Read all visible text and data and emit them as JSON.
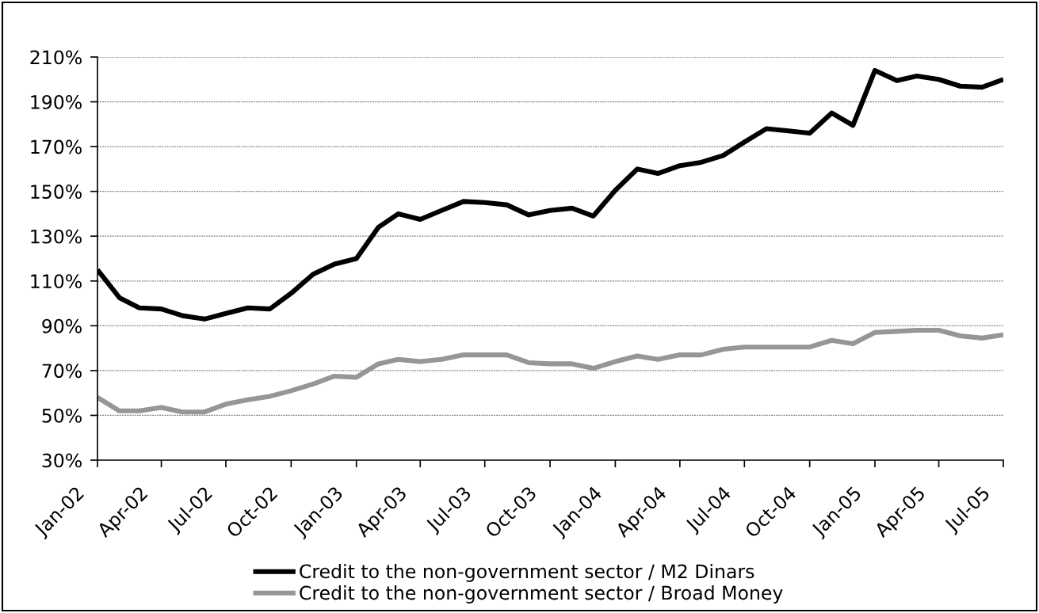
{
  "chart_data": {
    "type": "line",
    "x": [
      "2002-01",
      "2002-02",
      "2002-03",
      "2002-04",
      "2002-05",
      "2002-06",
      "2002-07",
      "2002-08",
      "2002-09",
      "2002-10",
      "2002-11",
      "2002-12",
      "2003-01",
      "2003-02",
      "2003-03",
      "2003-04",
      "2003-05",
      "2003-06",
      "2003-07",
      "2003-08",
      "2003-09",
      "2003-10",
      "2003-11",
      "2003-12",
      "2004-01",
      "2004-02",
      "2004-03",
      "2004-04",
      "2004-05",
      "2004-06",
      "2004-07",
      "2004-08",
      "2004-09",
      "2004-10",
      "2004-11",
      "2004-12",
      "2005-01",
      "2005-02",
      "2005-03",
      "2005-04",
      "2005-05",
      "2005-06",
      "2005-07"
    ],
    "xlim": [
      "2002-01",
      "2005-07"
    ],
    "xticks": [
      {
        "value": "2002-01",
        "label": "Jan-02"
      },
      {
        "value": "2002-04",
        "label": "Apr-02"
      },
      {
        "value": "2002-07",
        "label": "Jul-02"
      },
      {
        "value": "2002-10",
        "label": "Oct-02"
      },
      {
        "value": "2003-01",
        "label": "Jan-03"
      },
      {
        "value": "2003-04",
        "label": "Apr-03"
      },
      {
        "value": "2003-07",
        "label": "Jul-03"
      },
      {
        "value": "2003-10",
        "label": "Oct-03"
      },
      {
        "value": "2004-01",
        "label": "Jan-04"
      },
      {
        "value": "2004-04",
        "label": "Apr-04"
      },
      {
        "value": "2004-07",
        "label": "Jul-04"
      },
      {
        "value": "2004-10",
        "label": "Oct-04"
      },
      {
        "value": "2005-01",
        "label": "Jan-05"
      },
      {
        "value": "2005-04",
        "label": "Apr-05"
      },
      {
        "value": "2005-07",
        "label": "Jul-05"
      }
    ],
    "ylim": [
      30,
      210
    ],
    "yticks": [
      {
        "value": 30,
        "label": "30%"
      },
      {
        "value": 50,
        "label": "50%"
      },
      {
        "value": 70,
        "label": "70%"
      },
      {
        "value": 90,
        "label": "90%"
      },
      {
        "value": 110,
        "label": "110%"
      },
      {
        "value": 130,
        "label": "130%"
      },
      {
        "value": 150,
        "label": "150%"
      },
      {
        "value": 170,
        "label": "170%"
      },
      {
        "value": 190,
        "label": "190%"
      },
      {
        "value": 210,
        "label": "210%"
      }
    ],
    "grid": "y",
    "legend": "bottom",
    "line_style": "solid",
    "series": [
      {
        "name": "Credit to the non-government sector / M2 Dinars",
        "color": "#000000",
        "values": [
          115,
          102.5,
          98,
          97.5,
          94.5,
          93,
          95.5,
          98,
          97.5,
          104.5,
          113,
          117.5,
          120,
          134,
          140,
          137.5,
          141.5,
          145.5,
          145,
          144,
          139.5,
          141.5,
          142.5,
          139,
          150.5,
          160,
          158,
          161.5,
          163,
          166,
          172,
          178,
          177,
          176,
          185,
          179.5,
          204,
          199.5,
          201.5,
          200,
          197,
          196.5,
          200
        ]
      },
      {
        "name": "Credit to the non-government sector / Broad Money",
        "color": "#969696",
        "values": [
          58,
          52,
          52,
          53.5,
          51.5,
          51.5,
          55,
          57,
          58.5,
          61,
          64,
          67.5,
          67,
          73,
          75,
          74,
          75,
          77,
          77,
          77,
          73.5,
          73,
          73,
          71,
          74,
          76.5,
          75,
          77,
          77,
          79.5,
          80.5,
          80.5,
          80.5,
          80.5,
          83.5,
          82,
          87,
          87.5,
          88,
          88,
          85.5,
          84.5,
          86
        ]
      }
    ]
  }
}
